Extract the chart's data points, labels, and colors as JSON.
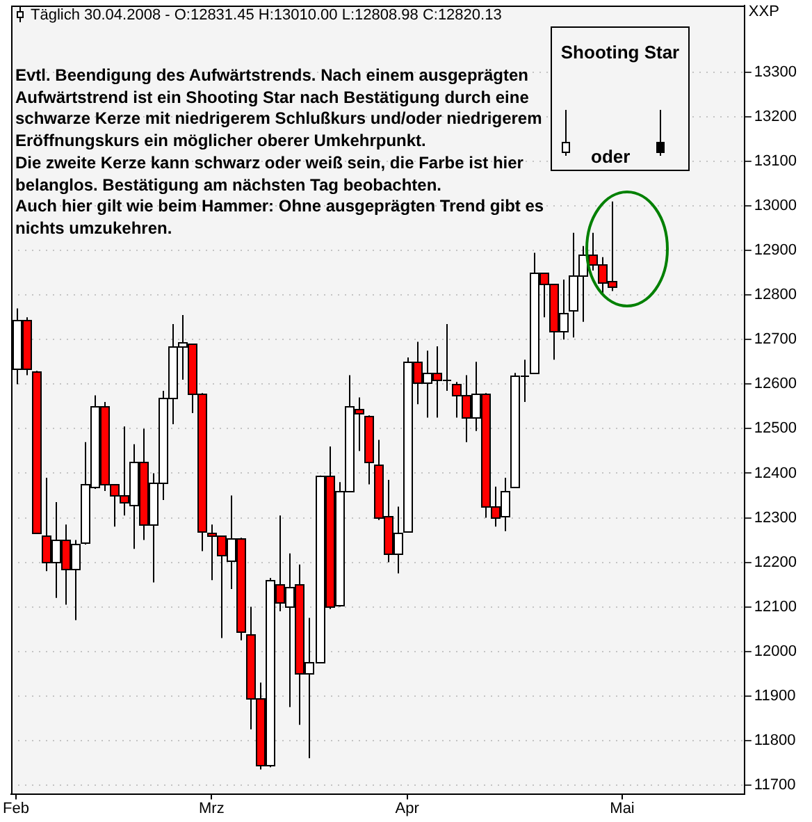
{
  "chart_data": {
    "type": "candlestick",
    "title": "Täglich 30.04.2008 - O:12831.45 H:13010.00 L:12808.98 C:12820.13",
    "ylabel": "XXP",
    "categories": [
      "Feb",
      null,
      null,
      null,
      null,
      null,
      null,
      null,
      null,
      null,
      null,
      null,
      null,
      null,
      null,
      null,
      null,
      null,
      null,
      null,
      "Mrz",
      null,
      null,
      null,
      null,
      null,
      null,
      null,
      null,
      null,
      null,
      null,
      null,
      null,
      null,
      null,
      null,
      null,
      null,
      null,
      "Apr",
      null,
      null,
      null,
      null,
      null,
      null,
      null,
      null,
      null,
      null,
      null,
      null,
      null,
      null,
      null,
      null,
      null,
      null,
      null,
      null,
      null,
      "Mai",
      null,
      null,
      null,
      null,
      null,
      null,
      null,
      null,
      null,
      null,
      null,
      null
    ],
    "ohlc": [
      [
        12635,
        12770,
        12600,
        12745
      ],
      [
        12745,
        12750,
        12620,
        12635
      ],
      [
        12630,
        12630,
        12265,
        12265
      ],
      [
        12260,
        12390,
        12180,
        12200
      ],
      [
        12200,
        12335,
        12120,
        12250
      ],
      [
        12250,
        12285,
        12105,
        12185
      ],
      [
        12185,
        12250,
        12070,
        12240
      ],
      [
        12245,
        12470,
        12240,
        12375
      ],
      [
        12370,
        12575,
        12365,
        12550
      ],
      [
        12550,
        12560,
        12360,
        12375
      ],
      [
        12375,
        12375,
        12280,
        12350
      ],
      [
        12350,
        12505,
        12305,
        12335
      ],
      [
        12330,
        12465,
        12230,
        12425
      ],
      [
        12425,
        12500,
        12250,
        12285
      ],
      [
        12285,
        12400,
        12155,
        12380
      ],
      [
        12380,
        12585,
        12340,
        12570
      ],
      [
        12570,
        12735,
        12510,
        12685
      ],
      [
        12685,
        12755,
        12610,
        12695
      ],
      [
        12690,
        12690,
        12535,
        12580
      ],
      [
        12580,
        12580,
        12225,
        12270
      ],
      [
        12265,
        12285,
        12160,
        12260
      ],
      [
        12260,
        12260,
        12030,
        12215
      ],
      [
        12205,
        12350,
        12140,
        12255
      ],
      [
        12255,
        12255,
        12025,
        12045
      ],
      [
        12040,
        12100,
        11825,
        11895
      ],
      [
        11895,
        11930,
        11735,
        11745
      ],
      [
        11745,
        12165,
        11740,
        12160
      ],
      [
        12150,
        12305,
        12090,
        12110
      ],
      [
        12100,
        12220,
        11875,
        12145
      ],
      [
        12150,
        12195,
        11835,
        11950
      ],
      [
        11950,
        12075,
        11760,
        11975
      ],
      [
        11975,
        12395,
        11975,
        12395
      ],
      [
        12395,
        12460,
        12095,
        12100
      ],
      [
        12105,
        12380,
        12100,
        12360
      ],
      [
        12360,
        12620,
        12360,
        12550
      ],
      [
        12545,
        12570,
        12450,
        12535
      ],
      [
        12530,
        12530,
        12375,
        12425
      ],
      [
        12420,
        12475,
        12295,
        12300
      ],
      [
        12305,
        12385,
        12200,
        12220
      ],
      [
        12220,
        12325,
        12175,
        12265
      ],
      [
        12270,
        12660,
        12270,
        12650
      ],
      [
        12650,
        12695,
        12555,
        12605
      ],
      [
        12605,
        12675,
        12525,
        12625
      ],
      [
        12625,
        12685,
        12525,
        12610
      ],
      [
        12610,
        12735,
        12585,
        12610
      ],
      [
        12600,
        12605,
        12525,
        12575
      ],
      [
        12575,
        12620,
        12470,
        12525
      ],
      [
        12525,
        12650,
        12495,
        12580
      ],
      [
        12580,
        12580,
        12300,
        12325
      ],
      [
        12325,
        12370,
        12280,
        12300
      ],
      [
        12305,
        12390,
        12270,
        12360
      ],
      [
        12370,
        12625,
        12370,
        12620
      ],
      [
        12620,
        12655,
        12560,
        12620
      ],
      [
        12625,
        12895,
        12625,
        12850
      ],
      [
        12850,
        12850,
        12750,
        12825
      ],
      [
        12825,
        12825,
        12655,
        12720
      ],
      [
        12720,
        12835,
        12700,
        12760
      ],
      [
        12765,
        12940,
        12705,
        12845
      ],
      [
        12845,
        12910,
        12740,
        12890
      ],
      [
        12890,
        12940,
        12855,
        12870
      ],
      [
        12870,
        12885,
        12805,
        12830
      ],
      [
        12831.45,
        13010.0,
        12808.98,
        12820.13
      ],
      null,
      null,
      null,
      null,
      null,
      null,
      null,
      null,
      null,
      null,
      null,
      null,
      null
    ],
    "colors": [
      "#ffffff",
      "#ff0000",
      "#ff0000",
      "#ff0000",
      "#ffffff",
      "#ff0000",
      "#ffffff",
      "#ffffff",
      "#ffffff",
      "#ff0000",
      "#ff0000",
      "#ff0000",
      "#ffffff",
      "#ff0000",
      "#ffffff",
      "#ffffff",
      "#ffffff",
      "#ffffff",
      "#ff0000",
      "#ff0000",
      "#ff0000",
      "#ff0000",
      "#ffffff",
      "#ff0000",
      "#ff0000",
      "#ff0000",
      "#ffffff",
      "#ff0000",
      "#ffffff",
      "#ff0000",
      "#ffffff",
      "#ffffff",
      "#ff0000",
      "#ffffff",
      "#ffffff",
      "#ff0000",
      "#ff0000",
      "#ff0000",
      "#ff0000",
      "#ffffff",
      "#ffffff",
      "#ff0000",
      "#ffffff",
      "#ff0000",
      "#000000",
      "#ff0000",
      "#ff0000",
      "#ffffff",
      "#ff0000",
      "#ff0000",
      "#ffffff",
      "#ffffff",
      "#000000",
      "#ffffff",
      "#ff0000",
      "#ff0000",
      "#ffffff",
      "#ffffff",
      "#ffffff",
      "#ff0000",
      "#ff0000",
      "#ff0000",
      null,
      null,
      null,
      null,
      null,
      null,
      null,
      null,
      null,
      null,
      null,
      null,
      null
    ],
    "ylim": [
      11680,
      13450
    ],
    "yticks": [
      11700,
      11800,
      11900,
      12000,
      12100,
      12200,
      12300,
      12400,
      12500,
      12600,
      12700,
      12800,
      12900,
      13000,
      13100,
      13200,
      13300
    ],
    "grid": "y",
    "annotations": [
      "Evtl. Beendigung des Aufwärtstrends. Nach einem ausgeprägten Aufwärtstrend ist ein Shooting Star nach Bestätigung durch eine schwarze Kerze mit niedrigerem Schlußkurs und/oder niedrigerem Eröffnungskurs ein möglicher oberer Umkehrpunkt.",
      "Die zweite Kerze kann schwarz oder weiß sein, die Farbe ist hier belanglos. Bestätigung am nächsten Tag beobachten.",
      "Auch hier gilt wie beim Hammer: Ohne ausgeprägten Trend gibt es nichts umzukehren.",
      "Shooting Star",
      "oder"
    ]
  }
}
